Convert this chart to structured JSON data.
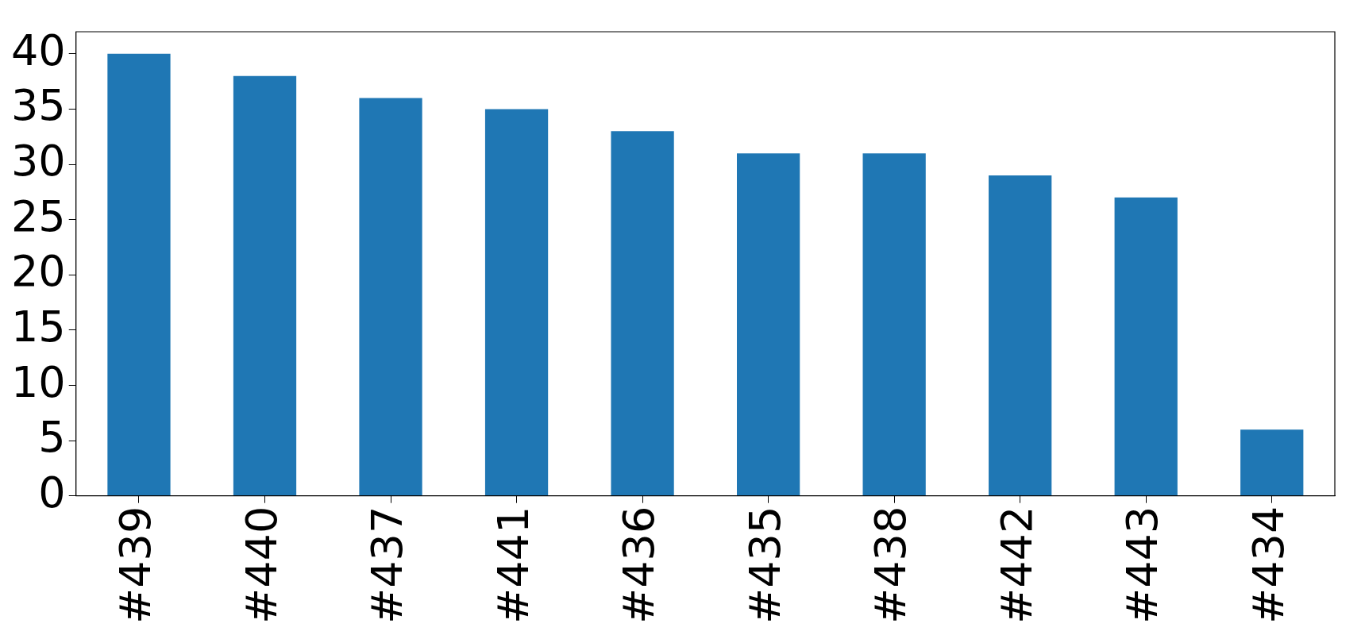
{
  "chart_data": {
    "type": "bar",
    "categories": [
      "#439",
      "#440",
      "#437",
      "#441",
      "#436",
      "#435",
      "#438",
      "#442",
      "#443",
      "#434"
    ],
    "values": [
      40,
      38,
      36,
      35,
      33,
      31,
      31,
      29,
      27,
      6
    ],
    "color": "#1f77b4",
    "ylim": [
      0,
      42
    ],
    "yticks": [
      0,
      5,
      10,
      15,
      20,
      25,
      30,
      35,
      40
    ],
    "grid": false,
    "legend": false
  }
}
